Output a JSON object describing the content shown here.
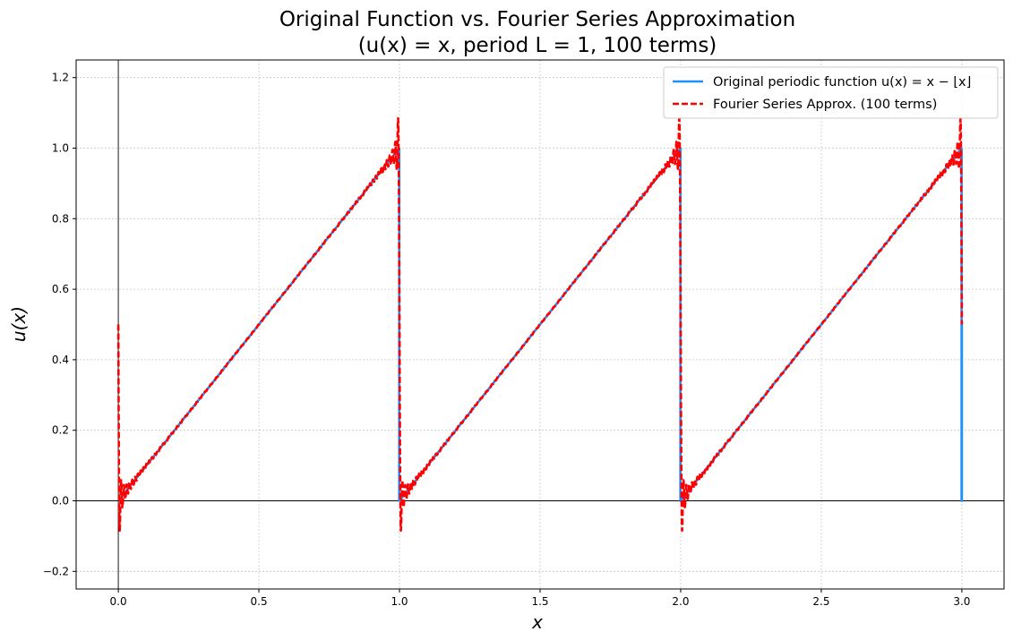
{
  "chart_data": {
    "type": "line",
    "title_line1": "Original Function vs. Fourier Series Approximation",
    "title_line2": "(u(x) = x, period L = 1, 100 terms)",
    "xlabel": "x",
    "ylabel": "u(x)",
    "xlim": [
      -0.15,
      3.15
    ],
    "ylim": [
      -0.25,
      1.25
    ],
    "xticks": [
      0.0,
      0.5,
      1.0,
      1.5,
      2.0,
      2.5,
      3.0
    ],
    "xtick_labels": [
      "0.0",
      "0.5",
      "1.0",
      "1.5",
      "2.0",
      "2.5",
      "3.0"
    ],
    "yticks": [
      -0.2,
      0.0,
      0.2,
      0.4,
      0.6,
      0.8,
      1.0,
      1.2
    ],
    "ytick_labels": [
      "−0.2",
      "0.0",
      "0.2",
      "0.4",
      "0.6",
      "0.8",
      "1.0",
      "1.2"
    ],
    "grid": true,
    "legend_position": "top-right",
    "reference_lines": {
      "x": 0,
      "y": 0,
      "color": "#000000"
    },
    "series": [
      {
        "name": "Original periodic function u(x) = x − ⌊x⌋",
        "kind": "solid",
        "color": "#1e90ff",
        "x": [
          0,
          0.999,
          0.999,
          1.0,
          1.999,
          1.999,
          2.0,
          2.999,
          2.999,
          3.0,
          3.0
        ],
        "y": [
          0,
          0.999,
          0.0,
          0.0,
          0.999,
          0.0,
          0.0,
          0.999,
          0.0,
          0.0,
          0.5
        ]
      },
      {
        "name": "Fourier Series Approx. (100 terms)",
        "kind": "dashed",
        "color": "#ff0000",
        "terms": 100,
        "x_range": [
          0,
          3
        ],
        "samples": 3000
      }
    ]
  }
}
